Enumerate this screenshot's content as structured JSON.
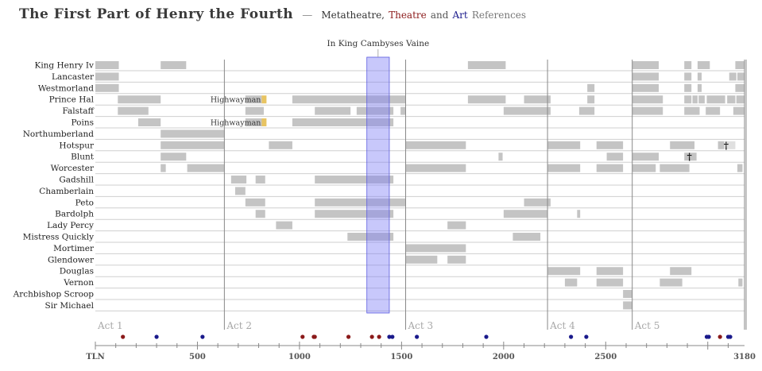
{
  "title": "The First Part of Henry the Fourth",
  "title_separator": "—",
  "subtitle": {
    "meta": "Metatheatre,",
    "theatre": "Theatre",
    "and": "and",
    "art": "Art",
    "references": "References"
  },
  "colors": {
    "bar": "#c4c4c4",
    "bar_dim": "#e0e0e0",
    "highlight": "#e8c462",
    "band": "#7b7bf5",
    "theatre_dot": "#8b1a1a",
    "art_dot": "#1a1a8b",
    "act_line": "#888888",
    "row_line": "#cfcfcf"
  },
  "chart_data": {
    "type": "timeline",
    "x_range": [
      0,
      3180
    ],
    "x_ticks": [
      {
        "value": 0,
        "label": "TLN"
      },
      {
        "value": 500,
        "label": "500"
      },
      {
        "value": 1000,
        "label": "1000"
      },
      {
        "value": 1500,
        "label": "1500"
      },
      {
        "value": 2000,
        "label": "2000"
      },
      {
        "value": 2500,
        "label": "2500"
      },
      {
        "value": 3180,
        "label": "3180"
      }
    ],
    "acts": [
      {
        "label": "Act 1",
        "start": 0
      },
      {
        "label": "Act 2",
        "start": 632
      },
      {
        "label": "Act 3",
        "start": 1520
      },
      {
        "label": "Act 4",
        "start": 2215
      },
      {
        "label": "Act 5",
        "start": 2630
      }
    ],
    "highlight_band": {
      "label": "In King Cambyses Vaine",
      "start": 1330,
      "end": 1440
    },
    "characters": [
      {
        "name": "King Henry Iv",
        "spans": [
          [
            0,
            115
          ],
          [
            320,
            445
          ],
          [
            1825,
            2010
          ],
          [
            2630,
            2760
          ],
          [
            2885,
            2920
          ],
          [
            2950,
            3010
          ],
          [
            3135,
            3180
          ]
        ]
      },
      {
        "name": "Lancaster",
        "spans": [
          [
            0,
            115
          ],
          [
            2630,
            2760
          ],
          [
            2885,
            2920
          ],
          [
            2950,
            2970
          ],
          [
            3105,
            3140
          ],
          [
            3145,
            3180
          ]
        ]
      },
      {
        "name": "Westmorland",
        "spans": [
          [
            0,
            115
          ],
          [
            2410,
            2445
          ],
          [
            2630,
            2760
          ],
          [
            2885,
            2920
          ],
          [
            2950,
            2970
          ],
          [
            3135,
            3180
          ]
        ]
      },
      {
        "name": "Prince Hal",
        "spans": [
          [
            110,
            320
          ],
          [
            735,
            815
          ],
          [
            965,
            1520
          ],
          [
            1825,
            2010
          ],
          [
            2100,
            2230
          ],
          [
            2410,
            2445
          ],
          [
            2630,
            2780
          ],
          [
            2885,
            2920
          ],
          [
            2925,
            2950
          ],
          [
            2955,
            2985
          ],
          [
            2995,
            3085
          ],
          [
            3095,
            3135
          ],
          [
            3140,
            3180
          ]
        ]
      },
      {
        "name": "Falstaff",
        "spans": [
          [
            110,
            260
          ],
          [
            735,
            825
          ],
          [
            1075,
            1250
          ],
          [
            1280,
            1460
          ],
          [
            1495,
            1520
          ],
          [
            2000,
            2230
          ],
          [
            2370,
            2445
          ],
          [
            2630,
            2780
          ],
          [
            2885,
            2960
          ],
          [
            2990,
            3060
          ],
          [
            3125,
            3180
          ]
        ]
      },
      {
        "name": "Poins",
        "spans": [
          [
            210,
            320
          ],
          [
            735,
            825
          ],
          [
            965,
            1460
          ]
        ]
      },
      {
        "name": "Northumberland",
        "spans": [
          [
            320,
            632
          ]
        ]
      },
      {
        "name": "Hotspur",
        "spans": [
          [
            320,
            632
          ],
          [
            850,
            965
          ],
          [
            1520,
            1815
          ],
          [
            2215,
            2375
          ],
          [
            2455,
            2585
          ],
          [
            2815,
            2935
          ],
          [
            3050,
            3080
          ]
        ],
        "dim_spans": [
          [
            3080,
            3135
          ]
        ],
        "death": 3090
      },
      {
        "name": "Blunt",
        "spans": [
          [
            320,
            445
          ],
          [
            1975,
            1995
          ],
          [
            2505,
            2585
          ],
          [
            2630,
            2760
          ],
          [
            2885,
            2945
          ]
        ],
        "death": 2910
      },
      {
        "name": "Worcester",
        "spans": [
          [
            320,
            345
          ],
          [
            450,
            632
          ],
          [
            1520,
            1815
          ],
          [
            2215,
            2375
          ],
          [
            2455,
            2585
          ],
          [
            2630,
            2745
          ],
          [
            2765,
            2910
          ],
          [
            3145,
            3170
          ]
        ]
      },
      {
        "name": "Gadshill",
        "spans": [
          [
            665,
            740
          ],
          [
            785,
            832
          ],
          [
            1075,
            1460
          ]
        ]
      },
      {
        "name": "Chamberlain",
        "spans": [
          [
            685,
            735
          ]
        ]
      },
      {
        "name": "Peto",
        "spans": [
          [
            735,
            832
          ],
          [
            1075,
            1520
          ],
          [
            2100,
            2230
          ]
        ]
      },
      {
        "name": "Bardolph",
        "spans": [
          [
            785,
            832
          ],
          [
            1075,
            1460
          ],
          [
            2000,
            2215
          ],
          [
            2360,
            2375
          ]
        ]
      },
      {
        "name": "Lady Percy",
        "spans": [
          [
            885,
            965
          ],
          [
            1725,
            1815
          ]
        ]
      },
      {
        "name": "Mistress Quickly",
        "spans": [
          [
            1235,
            1440
          ],
          [
            1440,
            1460
          ],
          [
            2045,
            2180
          ]
        ]
      },
      {
        "name": "Mortimer",
        "spans": [
          [
            1520,
            1815
          ]
        ]
      },
      {
        "name": "Glendower",
        "spans": [
          [
            1520,
            1675
          ],
          [
            1725,
            1815
          ]
        ]
      },
      {
        "name": "Douglas",
        "spans": [
          [
            2215,
            2375
          ],
          [
            2455,
            2585
          ],
          [
            2815,
            2920
          ]
        ]
      },
      {
        "name": "Vernon",
        "spans": [
          [
            2300,
            2360
          ],
          [
            2455,
            2585
          ],
          [
            2765,
            2875
          ],
          [
            3150,
            3170
          ]
        ]
      },
      {
        "name": "Archbishop Scroop",
        "spans": [
          [
            2585,
            2630
          ]
        ]
      },
      {
        "name": "Sir Michael",
        "spans": [
          [
            2585,
            2630
          ]
        ]
      }
    ],
    "annotations": [
      {
        "label": "Highwayman",
        "character": "Prince Hal",
        "value": 815
      },
      {
        "label": "Highwayman",
        "character": "Poins",
        "value": 815
      }
    ],
    "references": [
      {
        "value": 135,
        "kind": "theatre"
      },
      {
        "value": 300,
        "kind": "art"
      },
      {
        "value": 525,
        "kind": "art"
      },
      {
        "value": 1015,
        "kind": "theatre"
      },
      {
        "value": 1070,
        "kind": "theatre"
      },
      {
        "value": 1075,
        "kind": "theatre"
      },
      {
        "value": 1240,
        "kind": "theatre"
      },
      {
        "value": 1355,
        "kind": "theatre"
      },
      {
        "value": 1390,
        "kind": "theatre"
      },
      {
        "value": 1440,
        "kind": "art"
      },
      {
        "value": 1455,
        "kind": "art"
      },
      {
        "value": 1575,
        "kind": "art"
      },
      {
        "value": 1915,
        "kind": "art"
      },
      {
        "value": 2330,
        "kind": "art"
      },
      {
        "value": 2405,
        "kind": "art"
      },
      {
        "value": 2995,
        "kind": "art"
      },
      {
        "value": 3005,
        "kind": "art"
      },
      {
        "value": 3060,
        "kind": "theatre"
      },
      {
        "value": 3100,
        "kind": "art"
      },
      {
        "value": 3110,
        "kind": "art"
      }
    ]
  }
}
